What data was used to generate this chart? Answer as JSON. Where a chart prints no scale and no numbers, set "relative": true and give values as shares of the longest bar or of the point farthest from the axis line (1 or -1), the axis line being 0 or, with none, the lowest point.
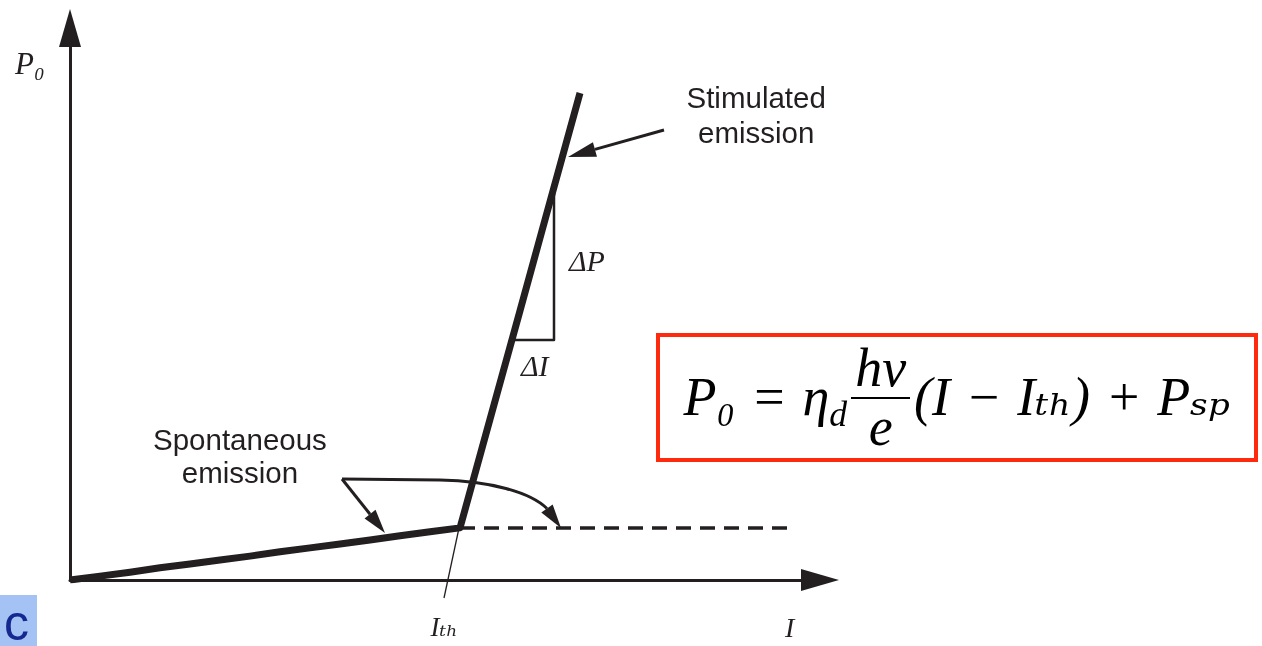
{
  "chart_data": {
    "type": "line",
    "xlabel": "I",
    "ylabel": "P₀",
    "categories": [
      null,
      null,
      null,
      null,
      null,
      null,
      null,
      null,
      null,
      null,
      null,
      null,
      null,
      null,
      null,
      null,
      null,
      null,
      null,
      null,
      null,
      null,
      null,
      null,
      null,
      null
    ],
    "series": [
      {
        "color": "#231f20",
        "line_style": "solid",
        "values": [
          0,
          0.008,
          0.016,
          0.025,
          0.033,
          0.041,
          0.049,
          0.058,
          0.066,
          0.074,
          0.082,
          0.091,
          0.099,
          0.107,
          0.33,
          0.553,
          0.777,
          1,
          null,
          null,
          null,
          null,
          null,
          null,
          null,
          null
        ]
      },
      {
        "color": "#231f20",
        "line_style": "dashed",
        "values": [
          null,
          null,
          null,
          null,
          null,
          null,
          null,
          null,
          null,
          null,
          null,
          null,
          null,
          0.107,
          0.107,
          0.107,
          0.107,
          0.107,
          0.107,
          0.107,
          0.107,
          0.107,
          0.107,
          0.107,
          0.107,
          null
        ]
      }
    ],
    "relative": true,
    "marker": "none",
    "annotations": [
      "Stimulated emission",
      "Spontaneous emission",
      "ΔP",
      "ΔI",
      "P₀ = η$_{d}$",
      "hν",
      "e",
      "(I − Iₜₕ) + Pₛₚ",
      "Iₜₕ",
      "c"
    ]
  }
}
